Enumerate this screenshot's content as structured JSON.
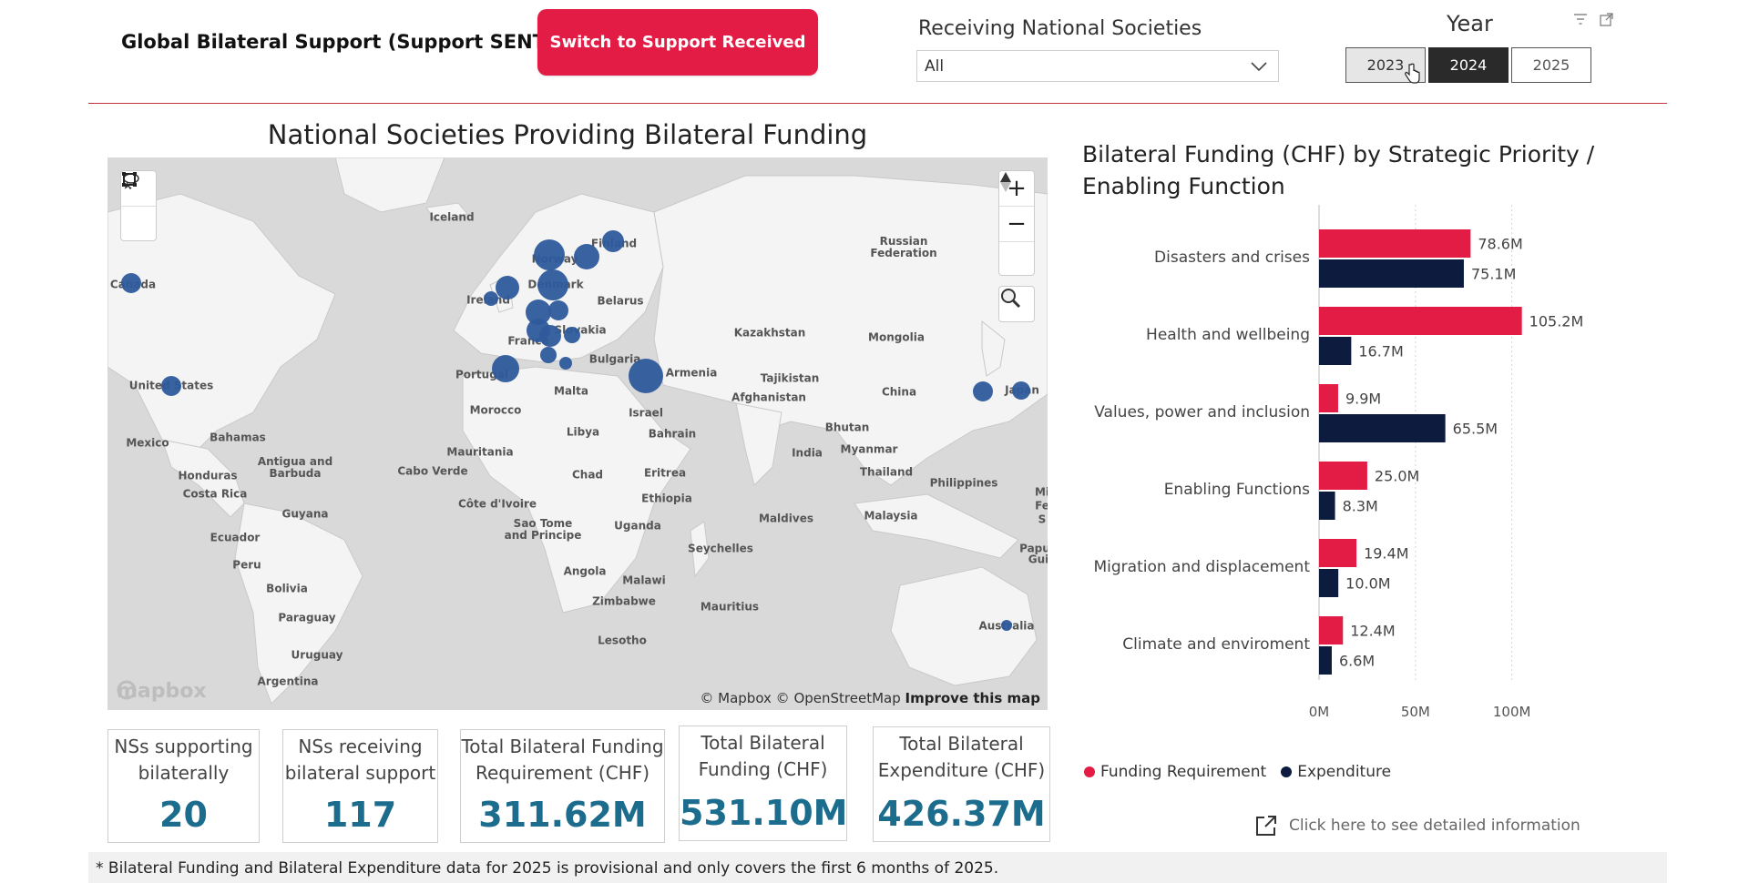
{
  "header": {
    "title": "Global Bilateral Support (Support SENT)*",
    "switch_button": "Switch to Support Received",
    "receiving_label": "Receiving National Societies",
    "receiving_value": "All",
    "year_label": "Year",
    "years": [
      "2023",
      "2024",
      "2025"
    ],
    "selected_year": "2024"
  },
  "map": {
    "title": "National Societies Providing Bilateral Funding",
    "attribution": "© Mapbox © OpenStreetMap",
    "improve_link": "Improve this map",
    "logo": "mapbox",
    "bubble_color": "#2e5a9c",
    "labels": [
      "Iceland",
      "Norway",
      "Finland",
      "Russian Federation",
      "Canada",
      "Denmark",
      "Ireland",
      "Belarus",
      "Slovakia",
      "Kazakhstan",
      "Mongolia",
      "France",
      "Portugal",
      "Bulgaria",
      "Armenia",
      "Tajikistan",
      "United States",
      "Malta",
      "China",
      "Japan",
      "Afghanistan",
      "Morocco",
      "Israel",
      "Libya",
      "Bahrain",
      "Bhutan",
      "Bahamas",
      "Mexico",
      "Mauritania",
      "India",
      "Myanmar",
      "Antigua and Barbuda",
      "Honduras",
      "Cabo Verde",
      "Chad",
      "Eritrea",
      "Thailand",
      "Costa Rica",
      "Philippines",
      "Côte d'Ivoire",
      "Ethiopia",
      "Guyana",
      "Sao Tome and Principe",
      "Uganda",
      "Maldives",
      "Malaysia",
      "Ecuador",
      "Seychelles",
      "Peru",
      "Angola",
      "Malawi",
      "Bolivia",
      "Zimbabwe",
      "Mauritius",
      "Paraguay",
      "Lesotho",
      "Australia",
      "Uruguay",
      "Argentina",
      "Mi",
      "Fe",
      "S",
      "Papua",
      "Gui"
    ]
  },
  "kpis": [
    {
      "label": "NSs supporting bilaterally",
      "value": "20"
    },
    {
      "label": "NSs receiving bilateral support",
      "value": "117"
    },
    {
      "label": "Total Bilateral Funding Requirement (CHF)",
      "value": "311.62M"
    },
    {
      "label": "Total Bilateral Funding (CHF)",
      "value": "531.10M"
    },
    {
      "label": "Total Bilateral Expenditure (CHF)",
      "value": "426.37M"
    }
  ],
  "footnote": "* Bilateral Funding and Bilateral Expenditure data for 2025 is provisional and only covers the first 6 months of 2025.",
  "chart_data": {
    "type": "bar",
    "orientation": "horizontal",
    "title": "Bilateral Funding (CHF) by Strategic Priority / Enabling Function",
    "categories": [
      "Disasters and crises",
      "Health and wellbeing",
      "Values, power and inclusion",
      "Enabling Functions",
      "Migration and displacement",
      "Climate and enviroment"
    ],
    "series": [
      {
        "name": "Funding Requirement",
        "color": "#e31c45",
        "values": [
          78.6,
          105.2,
          9.9,
          25.0,
          19.4,
          12.4
        ],
        "labels": [
          "78.6M",
          "105.2M",
          "9.9M",
          "25.0M",
          "19.4M",
          "12.4M"
        ]
      },
      {
        "name": "Expenditure",
        "color": "#0d1b3e",
        "values": [
          75.1,
          16.7,
          65.5,
          8.3,
          10.0,
          6.6
        ],
        "labels": [
          "75.1M",
          "16.7M",
          "65.5M",
          "8.3M",
          "10.0M",
          "6.6M"
        ]
      }
    ],
    "xlim": [
      0,
      120
    ],
    "xticks": [
      0,
      50,
      100
    ],
    "xtick_labels": [
      "0M",
      "50M",
      "100M"
    ],
    "grid": true,
    "legend_position": "bottom-left"
  },
  "detail_link": "Click here to see detailed information"
}
